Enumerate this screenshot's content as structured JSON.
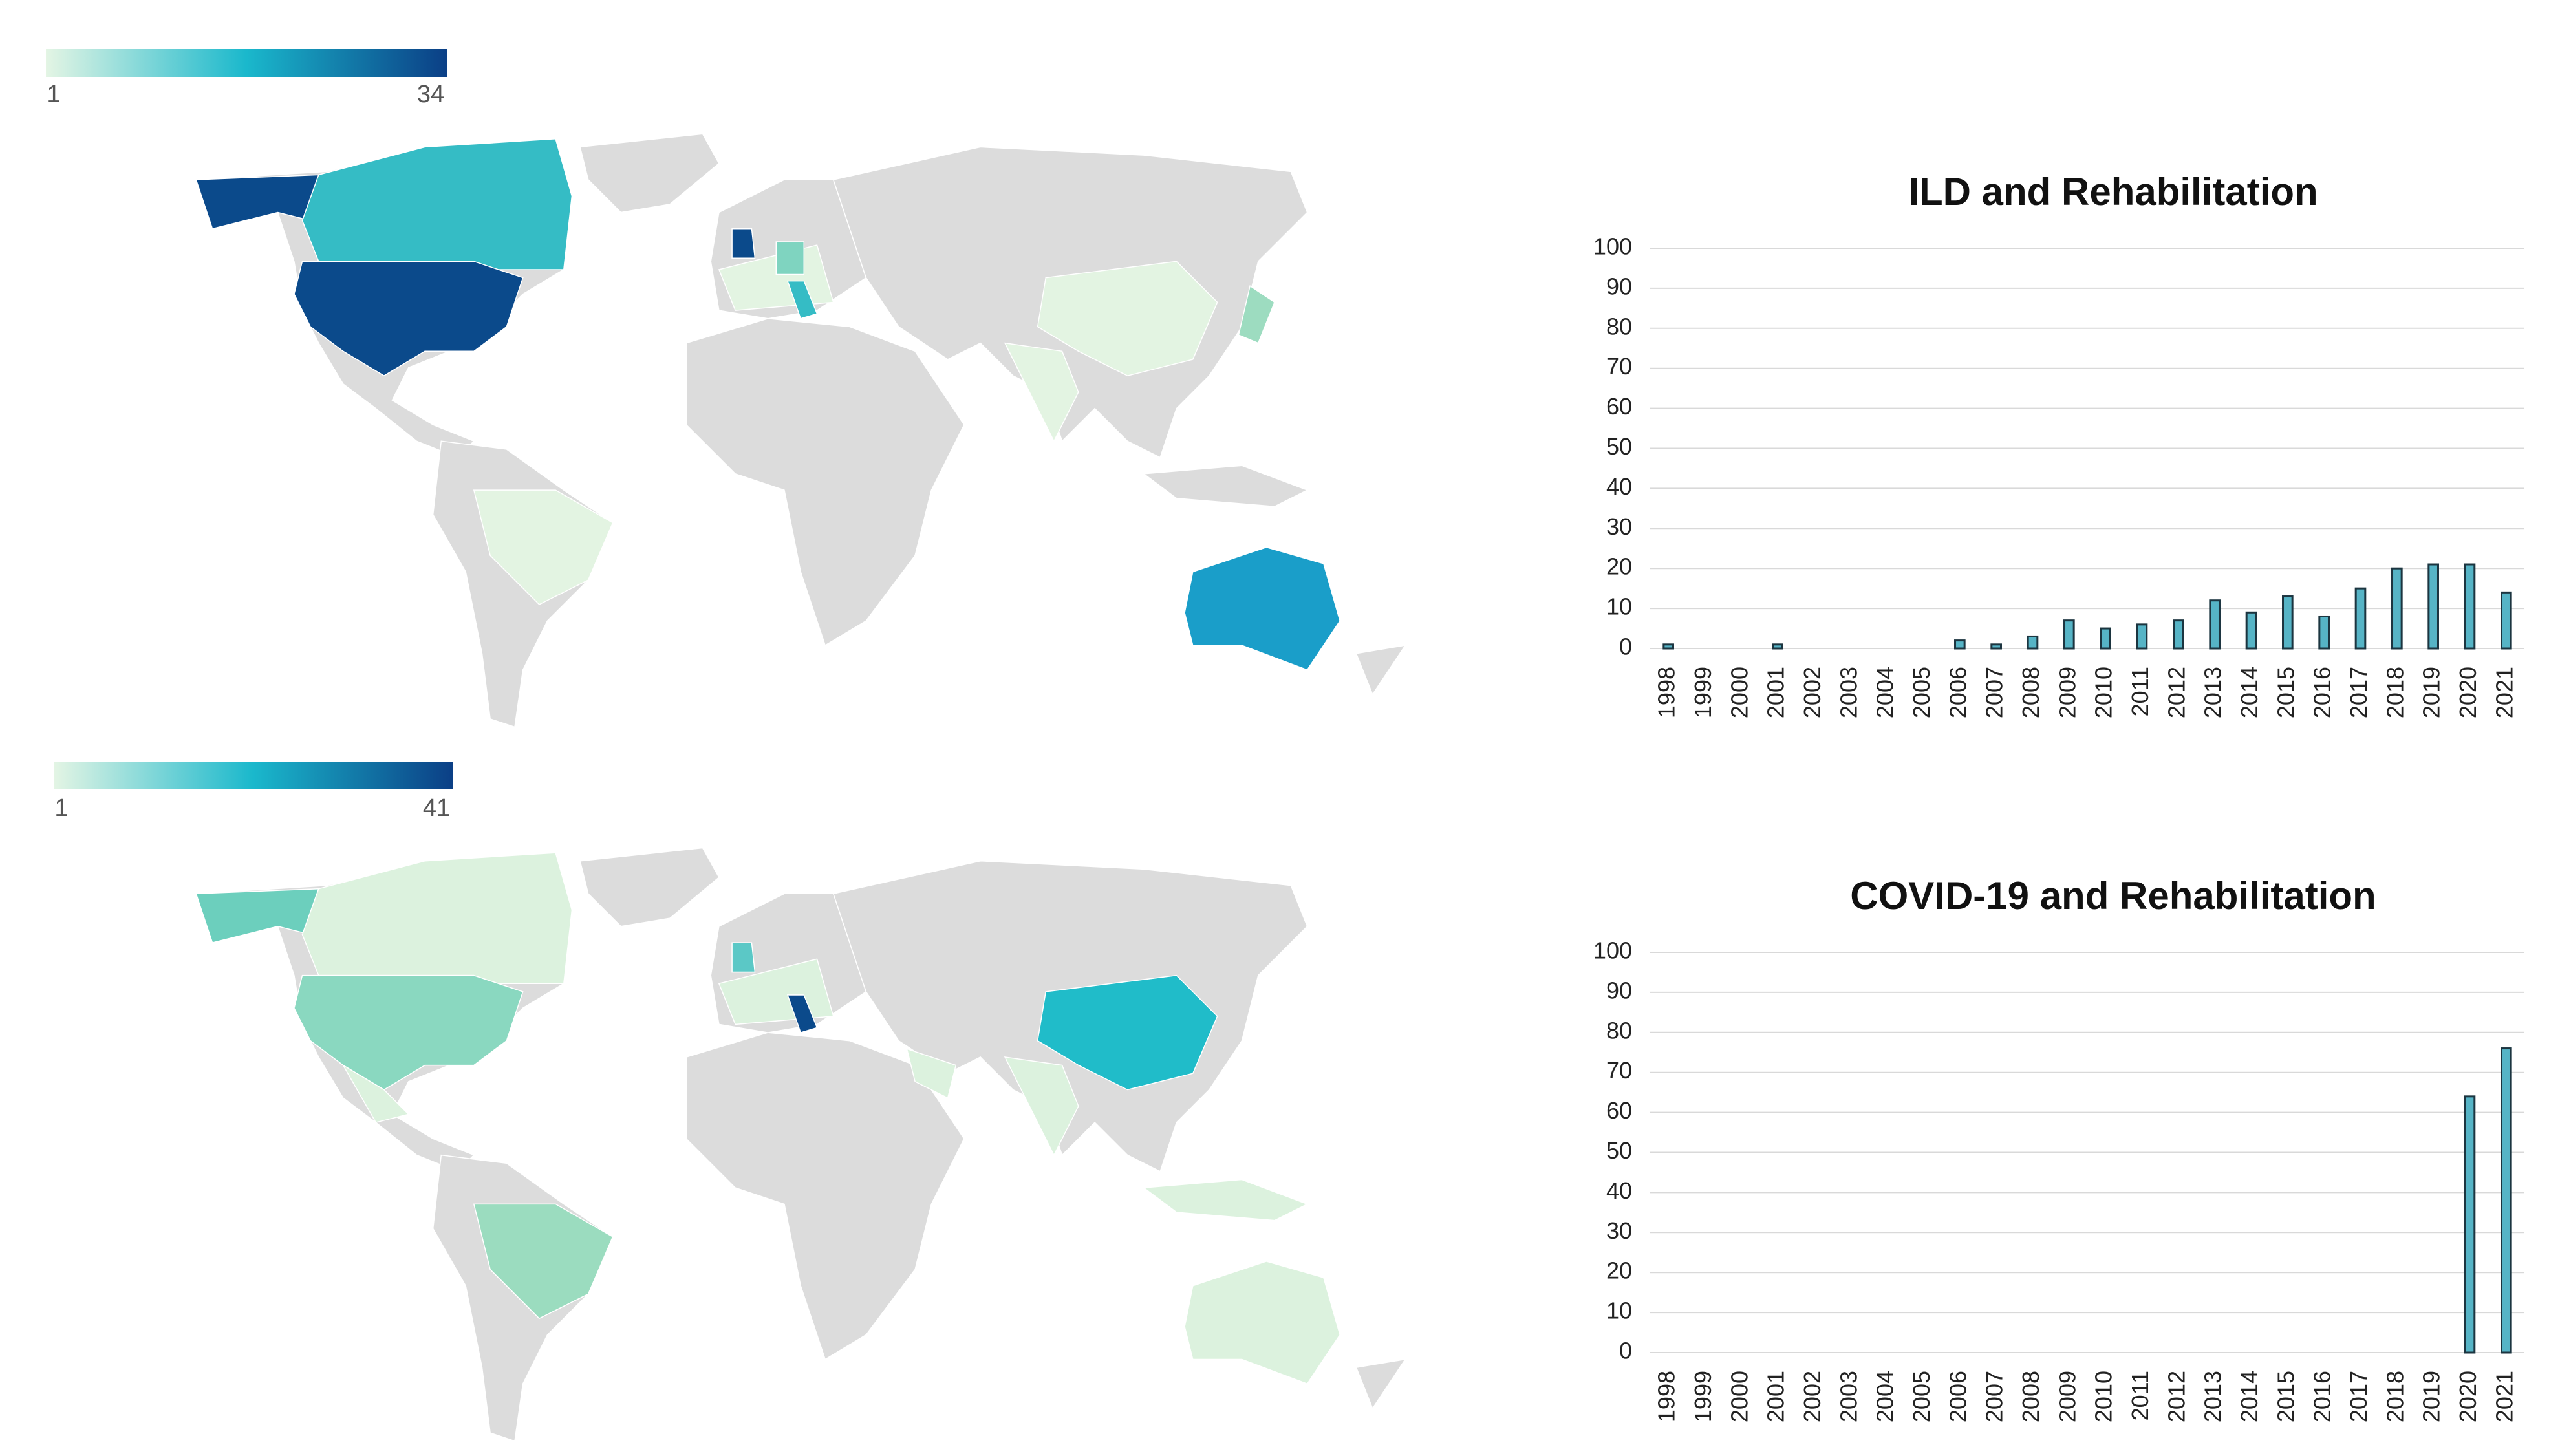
{
  "maps": [
    {
      "legend_min": 1,
      "legend_max": 34,
      "legend_colors": [
        "#e4f5e4",
        "#1ab8cc",
        "#0b3f86"
      ]
    },
    {
      "legend_min": 1,
      "legend_max": 41,
      "legend_colors": [
        "#e4f5e4",
        "#1ab8cc",
        "#0b3f86"
      ]
    }
  ],
  "chart_data": [
    {
      "type": "bar",
      "title": "ILD and Rehabilitation",
      "categories": [
        "1998",
        "1999",
        "2000",
        "2001",
        "2002",
        "2003",
        "2004",
        "2005",
        "2006",
        "2007",
        "2008",
        "2009",
        "2010",
        "2011",
        "2012",
        "2013",
        "2014",
        "2015",
        "2016",
        "2017",
        "2018",
        "2019",
        "2020",
        "2021"
      ],
      "values": [
        1,
        0,
        0,
        1,
        0,
        0,
        0,
        0,
        2,
        1,
        3,
        7,
        5,
        6,
        7,
        12,
        9,
        13,
        8,
        15,
        20,
        21,
        21,
        14
      ],
      "color": "#56b4c6",
      "ylim": [
        0,
        100
      ],
      "yticks": [
        0,
        10,
        20,
        30,
        40,
        50,
        60,
        70,
        80,
        90,
        100
      ],
      "grid": true
    },
    {
      "type": "bar",
      "title": "COVID-19 and Rehabilitation",
      "categories": [
        "1998",
        "1999",
        "2000",
        "2001",
        "2002",
        "2003",
        "2004",
        "2005",
        "2006",
        "2007",
        "2008",
        "2009",
        "2010",
        "2011",
        "2012",
        "2013",
        "2014",
        "2015",
        "2016",
        "2017",
        "2018",
        "2019",
        "2020",
        "2021"
      ],
      "values": [
        0,
        0,
        0,
        0,
        0,
        0,
        0,
        0,
        0,
        0,
        0,
        0,
        0,
        0,
        0,
        0,
        0,
        0,
        0,
        0,
        0,
        0,
        64,
        76
      ],
      "color": "#56b4c6",
      "ylim": [
        0,
        100
      ],
      "yticks": [
        0,
        10,
        20,
        30,
        40,
        50,
        60,
        70,
        80,
        90,
        100
      ],
      "grid": true
    }
  ]
}
